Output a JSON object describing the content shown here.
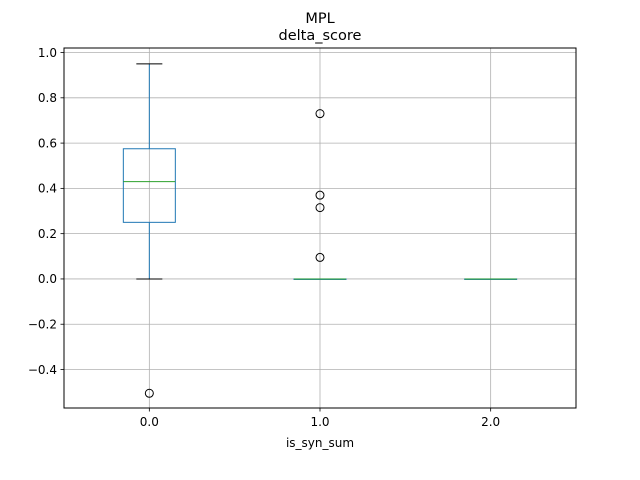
{
  "chart_data": {
    "type": "boxplot",
    "suptitle": "MPL",
    "title": "delta_score",
    "xlabel": "is_syn_sum",
    "ylabel": "",
    "categories": [
      "0.0",
      "1.0",
      "2.0"
    ],
    "ylim": [
      -0.57,
      1.02
    ],
    "yticks": [
      -0.4,
      -0.2,
      0.0,
      0.2,
      0.4,
      0.6,
      0.8,
      1.0
    ],
    "ytick_labels": [
      "−0.4",
      "−0.2",
      "0.0",
      "0.2",
      "0.4",
      "0.6",
      "0.8",
      "1.0"
    ],
    "grid": true,
    "boxes": [
      {
        "category": "0.0",
        "whislo": 0.0,
        "q1": 0.25,
        "median": 0.43,
        "q3": 0.575,
        "whishi": 0.95,
        "fliers": [
          -0.505
        ]
      },
      {
        "category": "1.0",
        "whislo": 0.0,
        "q1": 0.0,
        "median": 0.0,
        "q3": 0.0,
        "whishi": 0.0,
        "fliers": [
          0.73,
          0.37,
          0.315,
          0.095
        ]
      },
      {
        "category": "2.0",
        "whislo": 0.0,
        "q1": 0.0,
        "median": 0.0,
        "q3": 0.0,
        "whishi": 0.0,
        "fliers": []
      }
    ],
    "colors": {
      "box": "#1f77b4",
      "median": "#2ca02c",
      "whisker": "#1f77b4",
      "cap": "#000000",
      "flier": "#000000",
      "grid": "#b0b0b0"
    }
  }
}
